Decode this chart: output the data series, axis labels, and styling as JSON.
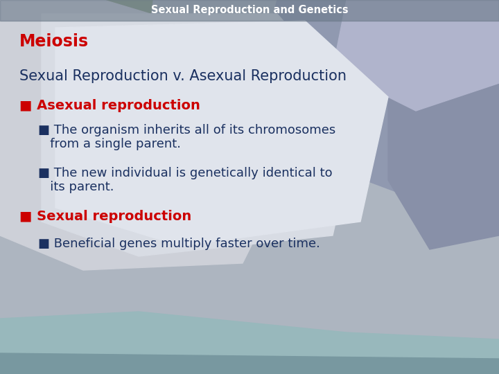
{
  "title": "Sexual Reproduction and Genetics",
  "subtitle": "Meiosis",
  "section_title": "Sexual Reproduction v. Asexual Reproduction",
  "bullet1_header": "■ Asexual reproduction",
  "bullet1_sub1_line1": "■ The organism inherits all of its chromosomes",
  "bullet1_sub1_line2": "   from a single parent.",
  "bullet1_sub2_line1": "■ The new individual is genetically identical to",
  "bullet1_sub2_line2": "   its parent.",
  "bullet2_header": "■ Sexual reproduction",
  "bullet2_sub1": "■ Beneficial genes multiply faster over time.",
  "title_color": "#ffffff",
  "subtitle_color": "#cc0000",
  "section_color": "#1a3060",
  "header_color": "#cc0000",
  "subtext_color": "#1a3060",
  "title_fontsize": 10.5,
  "subtitle_fontsize": 17,
  "section_fontsize": 15,
  "header_fontsize": 14,
  "subtext_fontsize": 13
}
